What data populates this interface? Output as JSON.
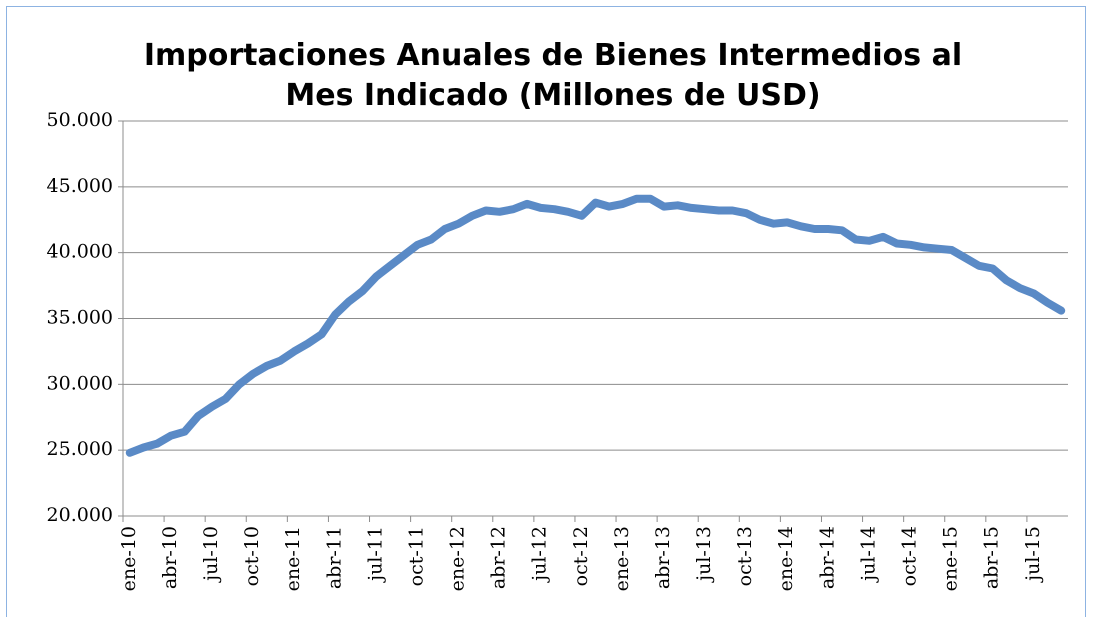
{
  "chart_data": {
    "type": "line",
    "title": "Importaciones Anuales de Bienes Intermedios al Mes Indicado (Millones de USD)",
    "categories": [
      "ene-10",
      null,
      null,
      "abr-10",
      null,
      null,
      "jul-10",
      null,
      null,
      "oct-10",
      null,
      null,
      "ene-11",
      null,
      null,
      "abr-11",
      null,
      null,
      "jul-11",
      null,
      null,
      "oct-11",
      null,
      null,
      "ene-12",
      null,
      null,
      "abr-12",
      null,
      null,
      "jul-12",
      null,
      null,
      "oct-12",
      null,
      null,
      "ene-13",
      null,
      null,
      "abr-13",
      null,
      null,
      "jul-13",
      null,
      null,
      "oct-13",
      null,
      null,
      "ene-14",
      null,
      null,
      "abr-14",
      null,
      null,
      "jul-14",
      null,
      null,
      "oct-14",
      null,
      null,
      "ene-15",
      null,
      null,
      "abr-15",
      null,
      null,
      "jul-15",
      null,
      null
    ],
    "series": [
      {
        "name": "Importaciones",
        "color": "#5a8ac6",
        "values": [
          24800,
          25200,
          25500,
          26100,
          26400,
          27600,
          28300,
          28900,
          30000,
          30800,
          31400,
          31800,
          32500,
          33100,
          33800,
          35300,
          36300,
          37100,
          38200,
          39000,
          39800,
          40600,
          41000,
          41800,
          42200,
          42800,
          43200,
          43100,
          43300,
          43700,
          43400,
          43300,
          43100,
          42800,
          43800,
          43500,
          43700,
          44100,
          44100,
          43500,
          43600,
          43400,
          43300,
          43200,
          43200,
          43000,
          42500,
          42200,
          42300,
          42000,
          41800,
          41800,
          41700,
          41000,
          40900,
          41200,
          40700,
          40600,
          40400,
          40300,
          40200,
          39600,
          39000,
          38800,
          37900,
          37300,
          36900,
          36200,
          35600
        ]
      }
    ],
    "ylim": [
      20000,
      50000
    ],
    "yticks": [
      {
        "value": 20000,
        "label": "20.000"
      },
      {
        "value": 25000,
        "label": "25.000"
      },
      {
        "value": 30000,
        "label": "30.000"
      },
      {
        "value": 35000,
        "label": "35.000"
      },
      {
        "value": 40000,
        "label": "40.000"
      },
      {
        "value": 45000,
        "label": "45.000"
      },
      {
        "value": 50000,
        "label": "50.000"
      }
    ],
    "grid": true
  }
}
